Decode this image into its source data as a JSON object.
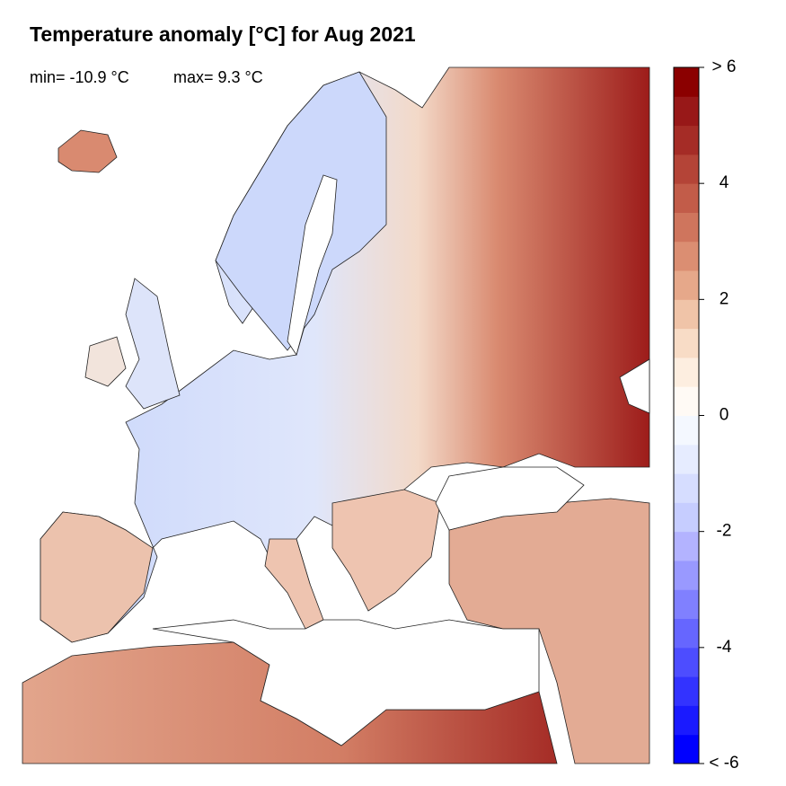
{
  "title": "Temperature anomaly [°C] for Aug 2021",
  "stats": {
    "min": "min= -10.9 °C",
    "max": "max= 9.3 °C"
  },
  "colorbar": {
    "lim": [
      -6,
      6
    ],
    "ticks": [
      {
        "value": 6,
        "label": "> 6"
      },
      4,
      2,
      0,
      -2,
      -4,
      {
        "value": -6,
        "label": "< -6"
      }
    ],
    "colors": [
      "#0000ff",
      "#1a1aff",
      "#3333ff",
      "#4d4dff",
      "#6666ff",
      "#8080ff",
      "#9999ff",
      "#b3b3ff",
      "#c6cdff",
      "#d6ddff",
      "#e6ecff",
      "#f4f8ff",
      "#fffaf5",
      "#fdeee0",
      "#f8dcc6",
      "#f0c4a8",
      "#e6a88a",
      "#db8e72",
      "#cf755d",
      "#c25c49",
      "#b44437",
      "#a52c26",
      "#981818",
      "#8b0000"
    ]
  }
}
